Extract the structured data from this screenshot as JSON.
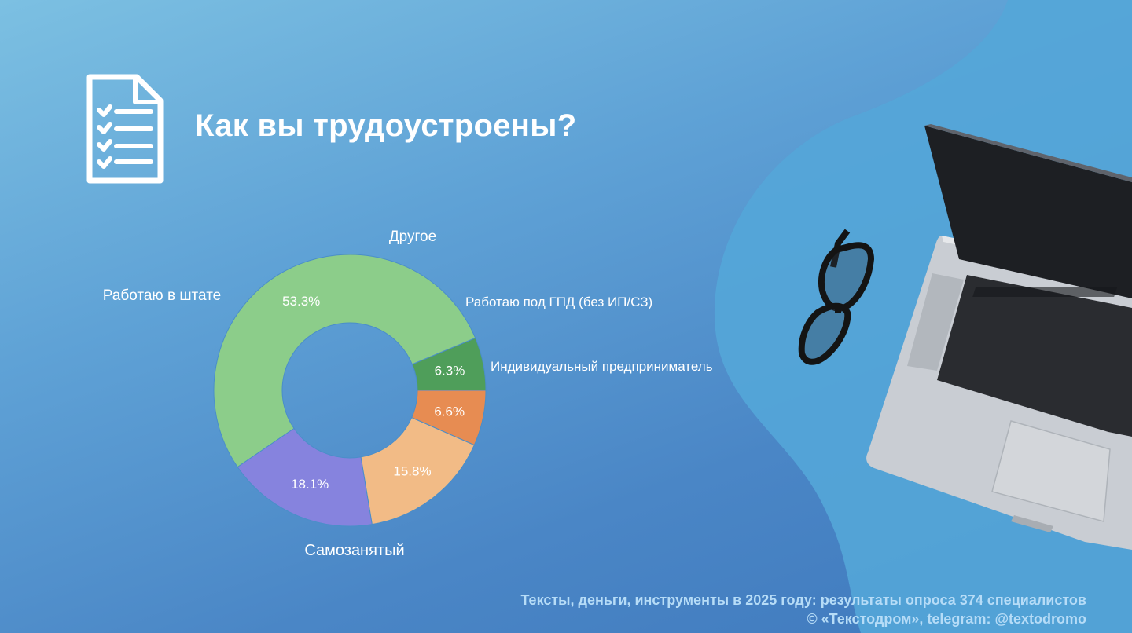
{
  "page": {
    "title": "Как вы трудоустроены?"
  },
  "footer": {
    "line1": "Тексты, деньги, инструменты в 2025 году: результаты опроса 374 специалистов",
    "line2": "© «Текстодром», telegram: @textodromo"
  },
  "icons": {
    "title_icon": "checklist-document-icon",
    "decor": "laptop-and-glasses-photo"
  },
  "chart_data": {
    "type": "pie",
    "donut": true,
    "title": "Как вы трудоустроены?",
    "slices": [
      {
        "label": "Индивидуальный предприниматель",
        "value": 6.3,
        "value_label": "6.3%",
        "color": "#4f9e5a"
      },
      {
        "label": "Самозанятый",
        "value": 53.3,
        "value_label": "53.3%",
        "color": "#8ccd8a"
      },
      {
        "label": "Работаю в штате",
        "value": 18.1,
        "value_label": "18.1%",
        "color": "#8683de"
      },
      {
        "label": "Другое",
        "value": 15.8,
        "value_label": "15.8%",
        "color": "#f2bb86"
      },
      {
        "label": "Работаю под ГПД (без ИП/СЗ)",
        "value": 6.6,
        "value_label": "6.6%",
        "color": "#e78c52"
      }
    ]
  }
}
